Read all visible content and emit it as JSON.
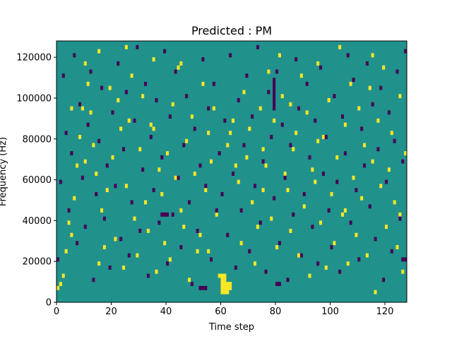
{
  "chart_data": {
    "type": "heatmap",
    "title": "Predicted : PM",
    "xlabel": "Time step",
    "ylabel": "Frequency (Hz)",
    "xlim": [
      0,
      128
    ],
    "ylim": [
      0,
      128000
    ],
    "x_ticks": [
      0,
      20,
      40,
      60,
      80,
      100,
      120
    ],
    "y_ticks": [
      0,
      20000,
      40000,
      60000,
      80000,
      100000,
      120000
    ],
    "x_tick_labels": [
      "0",
      "20",
      "40",
      "60",
      "80",
      "100",
      "120"
    ],
    "y_tick_labels": [
      "0",
      "20000",
      "40000",
      "60000",
      "80000",
      "100000",
      "120000"
    ],
    "n_time_steps": 128,
    "n_frequency_bins": 64,
    "bin_hz": 2000,
    "colormap": "viridis",
    "colors": {
      "low": "#440154",
      "mid": "#21918c",
      "high": "#fde725"
    },
    "background_value": 0,
    "cells_high": [
      [
        0,
        3
      ],
      [
        1,
        4
      ],
      [
        2,
        6
      ],
      [
        3,
        12
      ],
      [
        4,
        19
      ],
      [
        5,
        16
      ],
      [
        6,
        25
      ],
      [
        7,
        33
      ],
      [
        8,
        40
      ],
      [
        9,
        47
      ],
      [
        10,
        58
      ],
      [
        11,
        53
      ],
      [
        12,
        46
      ],
      [
        13,
        38
      ],
      [
        14,
        31
      ],
      [
        15,
        9
      ],
      [
        16,
        22
      ],
      [
        17,
        13
      ],
      [
        18,
        27
      ],
      [
        19,
        52
      ],
      [
        20,
        35
      ],
      [
        21,
        15
      ],
      [
        22,
        49
      ],
      [
        23,
        42
      ],
      [
        24,
        8
      ],
      [
        25,
        28
      ],
      [
        26,
        44
      ],
      [
        27,
        55
      ],
      [
        28,
        20
      ],
      [
        29,
        11
      ],
      [
        30,
        37
      ],
      [
        31,
        50
      ],
      [
        32,
        24
      ],
      [
        33,
        17
      ],
      [
        34,
        43
      ],
      [
        35,
        59
      ],
      [
        36,
        7
      ],
      [
        37,
        32
      ],
      [
        38,
        26
      ],
      [
        39,
        14
      ],
      [
        40,
        36
      ],
      [
        41,
        10
      ],
      [
        42,
        48
      ],
      [
        43,
        30
      ],
      [
        44,
        57
      ],
      [
        45,
        22
      ],
      [
        46,
        18
      ],
      [
        47,
        39
      ],
      [
        48,
        5
      ],
      [
        49,
        45
      ],
      [
        50,
        31
      ],
      [
        51,
        12
      ],
      [
        52,
        16
      ],
      [
        53,
        53
      ],
      [
        54,
        27
      ],
      [
        55,
        41
      ],
      [
        56,
        34
      ],
      [
        57,
        47
      ],
      [
        58,
        21
      ],
      [
        59,
        6
      ],
      [
        60,
        2
      ],
      [
        60,
        3
      ],
      [
        60,
        4
      ],
      [
        60,
        5
      ],
      [
        60,
        6
      ],
      [
        61,
        2
      ],
      [
        61,
        3
      ],
      [
        61,
        4
      ],
      [
        61,
        5
      ],
      [
        61,
        6
      ],
      [
        62,
        2
      ],
      [
        62,
        3
      ],
      [
        62,
        4
      ],
      [
        63,
        3
      ],
      [
        63,
        4
      ],
      [
        64,
        44
      ],
      [
        62,
        38
      ],
      [
        63,
        41
      ],
      [
        66,
        29
      ],
      [
        67,
        14
      ],
      [
        68,
        51
      ],
      [
        69,
        35
      ],
      [
        70,
        42
      ],
      [
        71,
        24
      ],
      [
        72,
        9
      ],
      [
        73,
        18
      ],
      [
        74,
        47
      ],
      [
        75,
        37
      ],
      [
        76,
        33
      ],
      [
        77,
        56
      ],
      [
        78,
        20
      ],
      [
        79,
        44
      ],
      [
        80,
        13
      ],
      [
        81,
        60
      ],
      [
        82,
        50
      ],
      [
        83,
        31
      ],
      [
        84,
        27
      ],
      [
        85,
        17
      ],
      [
        86,
        37
      ],
      [
        87,
        41
      ],
      [
        88,
        11
      ],
      [
        89,
        55
      ],
      [
        90,
        23
      ],
      [
        91,
        46
      ],
      [
        92,
        6
      ],
      [
        93,
        32
      ],
      [
        94,
        29
      ],
      [
        95,
        58
      ],
      [
        96,
        19
      ],
      [
        97,
        40
      ],
      [
        98,
        8
      ],
      [
        99,
        49
      ],
      [
        100,
        26
      ],
      [
        101,
        14
      ],
      [
        102,
        35
      ],
      [
        103,
        62
      ],
      [
        104,
        21
      ],
      [
        105,
        43
      ],
      [
        106,
        9
      ],
      [
        107,
        53
      ],
      [
        108,
        30
      ],
      [
        109,
        16
      ],
      [
        110,
        47
      ],
      [
        111,
        25
      ],
      [
        112,
        38
      ],
      [
        113,
        11
      ],
      [
        114,
        52
      ],
      [
        115,
        34
      ],
      [
        116,
        2
      ],
      [
        117,
        44
      ],
      [
        118,
        28
      ],
      [
        119,
        57
      ],
      [
        120,
        18
      ],
      [
        121,
        32
      ],
      [
        122,
        41
      ],
      [
        123,
        24
      ],
      [
        124,
        13
      ],
      [
        125,
        50
      ],
      [
        126,
        7
      ],
      [
        127,
        36
      ],
      [
        5,
        47
      ],
      [
        10,
        34
      ],
      [
        15,
        61
      ],
      [
        25,
        62
      ],
      [
        35,
        42
      ],
      [
        45,
        58
      ],
      [
        55,
        12
      ],
      [
        65,
        33
      ],
      [
        75,
        27
      ],
      [
        85,
        48
      ],
      [
        95,
        39
      ],
      [
        105,
        22
      ],
      [
        115,
        60
      ],
      [
        125,
        21
      ]
    ],
    "cells_low": [
      [
        0,
        10
      ],
      [
        1,
        29
      ],
      [
        2,
        55
      ],
      [
        3,
        41
      ],
      [
        4,
        22
      ],
      [
        5,
        36
      ],
      [
        6,
        60
      ],
      [
        7,
        14
      ],
      [
        8,
        48
      ],
      [
        9,
        30
      ],
      [
        10,
        18
      ],
      [
        11,
        43
      ],
      [
        12,
        56
      ],
      [
        13,
        5
      ],
      [
        14,
        26
      ],
      [
        15,
        39
      ],
      [
        16,
        52
      ],
      [
        17,
        20
      ],
      [
        18,
        33
      ],
      [
        19,
        8
      ],
      [
        20,
        46
      ],
      [
        21,
        28
      ],
      [
        22,
        58
      ],
      [
        23,
        15
      ],
      [
        24,
        37
      ],
      [
        25,
        51
      ],
      [
        26,
        11
      ],
      [
        27,
        24
      ],
      [
        28,
        44
      ],
      [
        29,
        62
      ],
      [
        30,
        17
      ],
      [
        31,
        32
      ],
      [
        32,
        53
      ],
      [
        33,
        6
      ],
      [
        34,
        40
      ],
      [
        35,
        27
      ],
      [
        36,
        49
      ],
      [
        37,
        19
      ],
      [
        38,
        35
      ],
      [
        39,
        61
      ],
      [
        40,
        9
      ],
      [
        41,
        45
      ],
      [
        42,
        21
      ],
      [
        43,
        56
      ],
      [
        44,
        30
      ],
      [
        45,
        13
      ],
      [
        46,
        38
      ],
      [
        47,
        50
      ],
      [
        48,
        24
      ],
      [
        49,
        4
      ],
      [
        50,
        42
      ],
      [
        51,
        17
      ],
      [
        52,
        33
      ],
      [
        53,
        59
      ],
      [
        54,
        28
      ],
      [
        55,
        47
      ],
      [
        56,
        10
      ],
      [
        57,
        53
      ],
      [
        58,
        22
      ],
      [
        59,
        36
      ],
      [
        60,
        26
      ],
      [
        61,
        44
      ],
      [
        62,
        16
      ],
      [
        63,
        60
      ],
      [
        64,
        31
      ],
      [
        65,
        8
      ],
      [
        66,
        49
      ],
      [
        67,
        22
      ],
      [
        68,
        38
      ],
      [
        69,
        55
      ],
      [
        70,
        12
      ],
      [
        71,
        45
      ],
      [
        72,
        28
      ],
      [
        73,
        62
      ],
      [
        74,
        19
      ],
      [
        75,
        34
      ],
      [
        76,
        7
      ],
      [
        77,
        51
      ],
      [
        78,
        40
      ],
      [
        79,
        25
      ],
      [
        80,
        56
      ],
      [
        81,
        14
      ],
      [
        82,
        43
      ],
      [
        83,
        30
      ],
      [
        84,
        5
      ],
      [
        85,
        38
      ],
      [
        86,
        21
      ],
      [
        87,
        59
      ],
      [
        88,
        47
      ],
      [
        89,
        11
      ],
      [
        90,
        26
      ],
      [
        91,
        53
      ],
      [
        92,
        35
      ],
      [
        93,
        18
      ],
      [
        94,
        44
      ],
      [
        95,
        9
      ],
      [
        96,
        57
      ],
      [
        97,
        31
      ],
      [
        98,
        40
      ],
      [
        99,
        22
      ],
      [
        100,
        13
      ],
      [
        101,
        50
      ],
      [
        102,
        29
      ],
      [
        103,
        7
      ],
      [
        104,
        45
      ],
      [
        105,
        36
      ],
      [
        106,
        60
      ],
      [
        107,
        19
      ],
      [
        108,
        54
      ],
      [
        109,
        27
      ],
      [
        110,
        10
      ],
      [
        111,
        42
      ],
      [
        112,
        33
      ],
      [
        113,
        58
      ],
      [
        114,
        23
      ],
      [
        115,
        48
      ],
      [
        116,
        15
      ],
      [
        117,
        37
      ],
      [
        118,
        52
      ],
      [
        119,
        5
      ],
      [
        120,
        29
      ],
      [
        121,
        46
      ],
      [
        122,
        12
      ],
      [
        123,
        39
      ],
      [
        124,
        56
      ],
      [
        125,
        20
      ],
      [
        126,
        34
      ],
      [
        127,
        61
      ],
      [
        38,
        21
      ],
      [
        39,
        21
      ],
      [
        40,
        21
      ],
      [
        52,
        3
      ],
      [
        53,
        3
      ],
      [
        54,
        3
      ],
      [
        80,
        4
      ],
      [
        81,
        4
      ],
      [
        126,
        10
      ],
      [
        127,
        10
      ],
      [
        79,
        47
      ],
      [
        79,
        48
      ],
      [
        79,
        49
      ],
      [
        79,
        50
      ],
      [
        79,
        51
      ],
      [
        79,
        52
      ],
      [
        79,
        53
      ],
      [
        79,
        54
      ]
    ]
  }
}
